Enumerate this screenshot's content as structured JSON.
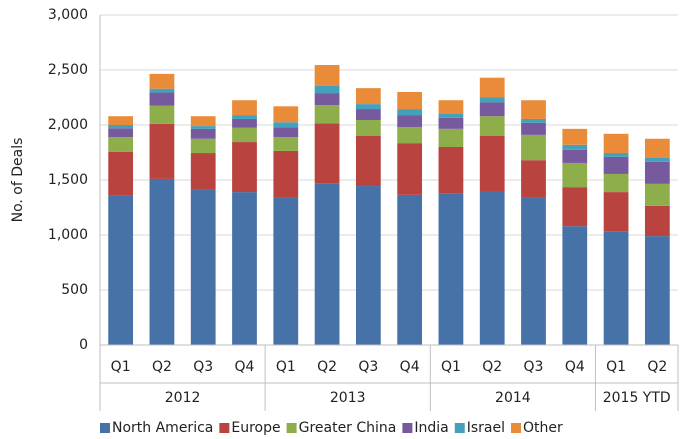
{
  "chart_data": {
    "type": "stacked_bar",
    "y_label": "No. of Deals",
    "categories": [
      "Q1",
      "Q2",
      "Q3",
      "Q4",
      "Q1",
      "Q2",
      "Q3",
      "Q4",
      "Q1",
      "Q2",
      "Q3",
      "Q4",
      "Q1",
      "Q2"
    ],
    "category_groups": [
      "2012",
      "2012",
      "2012",
      "2012",
      "2013",
      "2013",
      "2013",
      "2013",
      "2014",
      "2014",
      "2014",
      "2014",
      "2015 YTD",
      "2015 YTD"
    ],
    "series": [
      {
        "name": "North America",
        "color": "#4672a8",
        "values": [
          1360,
          1510,
          1410,
          1390,
          1345,
          1470,
          1445,
          1365,
          1375,
          1400,
          1345,
          1080,
          1035,
          990
        ]
      },
      {
        "name": "Europe",
        "color": "#b8433f",
        "values": [
          395,
          500,
          335,
          455,
          420,
          545,
          455,
          470,
          425,
          500,
          335,
          355,
          355,
          275
        ]
      },
      {
        "name": "Greater China",
        "color": "#8dae4a",
        "values": [
          135,
          165,
          130,
          130,
          125,
          165,
          145,
          145,
          165,
          180,
          230,
          220,
          165,
          200
        ]
      },
      {
        "name": "India",
        "color": "#77599e",
        "values": [
          80,
          120,
          90,
          80,
          90,
          110,
          100,
          110,
          100,
          125,
          110,
          120,
          155,
          200
        ]
      },
      {
        "name": "Israel",
        "color": "#43a1bd",
        "values": [
          30,
          35,
          25,
          35,
          45,
          65,
          45,
          55,
          35,
          45,
          35,
          45,
          35,
          35
        ]
      },
      {
        "name": "Other",
        "color": "#ea8b39",
        "values": [
          80,
          135,
          90,
          135,
          145,
          190,
          145,
          155,
          125,
          180,
          170,
          145,
          175,
          175
        ]
      }
    ],
    "ylim": [
      0,
      3000
    ],
    "yticks": [
      0,
      500,
      {
        "value": 1000,
        "label": "1,000"
      },
      {
        "value": 1500,
        "label": "1,500"
      },
      {
        "value": 2000,
        "label": "2,000"
      },
      {
        "value": 2500,
        "label": "2,500"
      },
      {
        "value": 3000,
        "label": "3,000"
      }
    ],
    "grid": true,
    "legend": "bottom"
  }
}
